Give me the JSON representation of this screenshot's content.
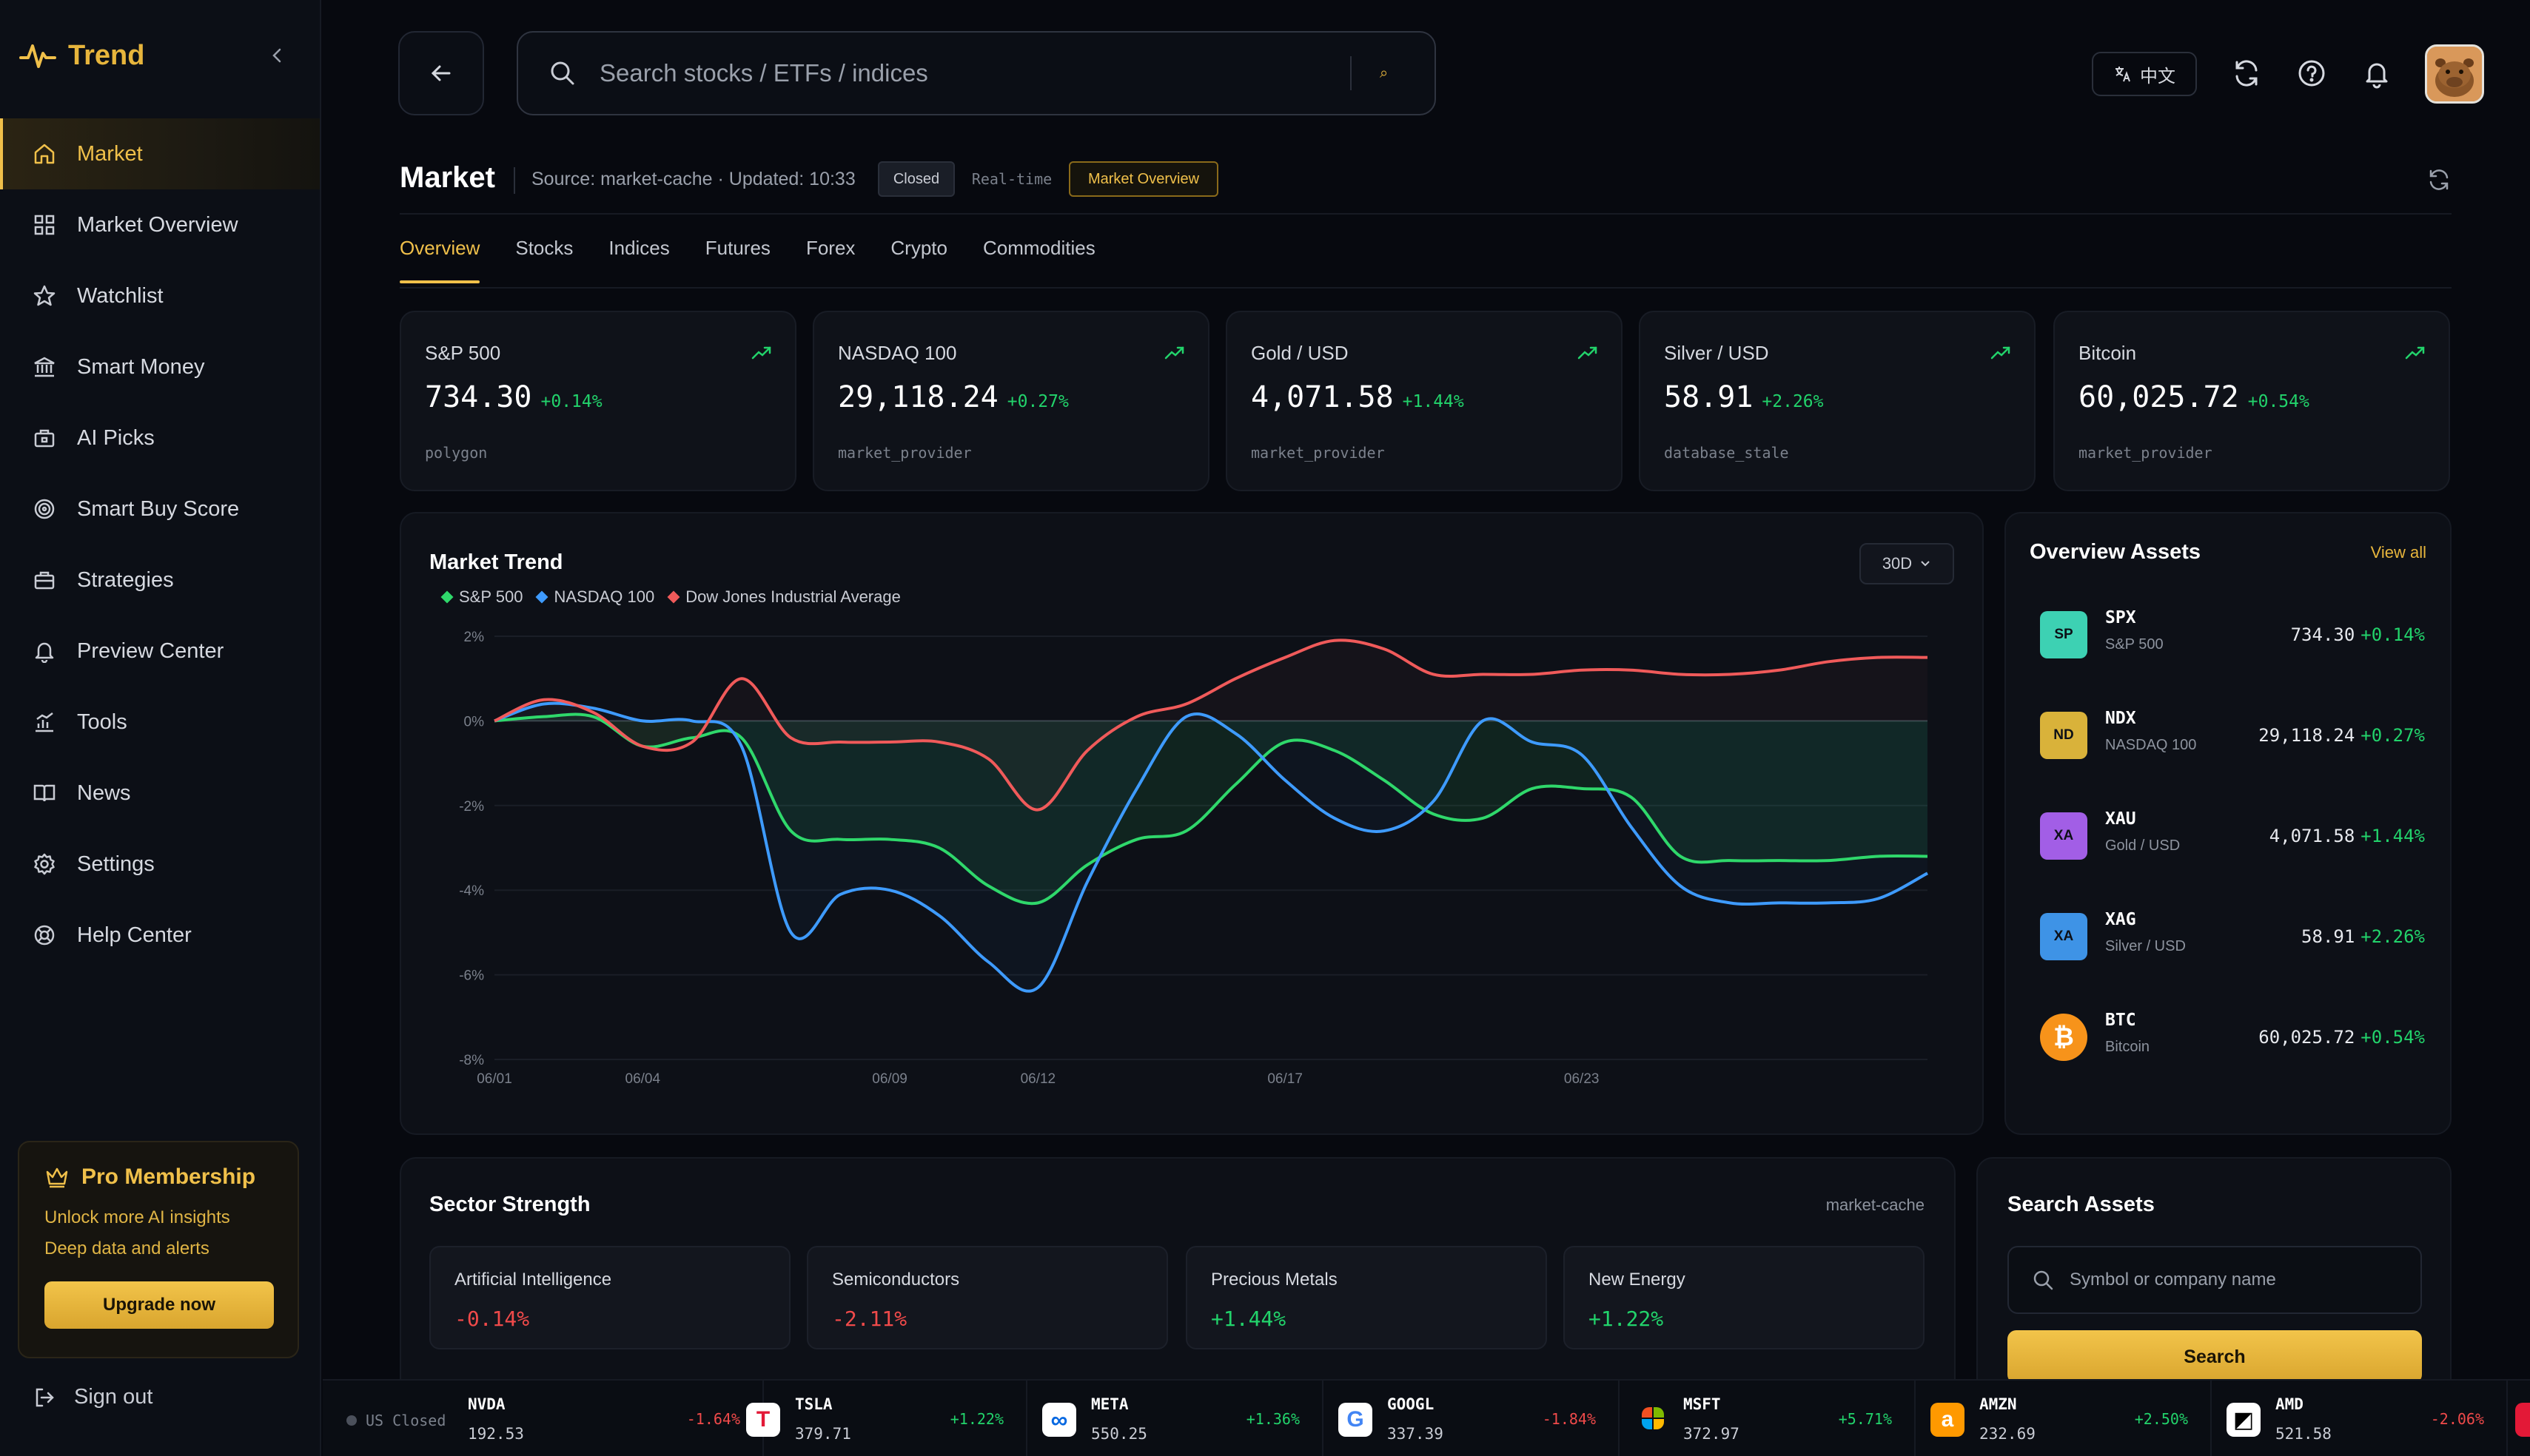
{
  "app": {
    "brand": "Trend"
  },
  "sidebar": {
    "items": [
      {
        "label": "Market",
        "icon": "home-icon",
        "active": true
      },
      {
        "label": "Market Overview",
        "icon": "grid-icon"
      },
      {
        "label": "Watchlist",
        "icon": "star-icon"
      },
      {
        "label": "Smart Money",
        "icon": "bank-icon"
      },
      {
        "label": "AI Picks",
        "icon": "briefcase-lock-icon"
      },
      {
        "label": "Smart Buy Score",
        "icon": "target-icon"
      },
      {
        "label": "Strategies",
        "icon": "briefcase-icon"
      },
      {
        "label": "Preview Center",
        "icon": "bell-icon"
      },
      {
        "label": "Tools",
        "icon": "bar-chart-icon"
      },
      {
        "label": "News",
        "icon": "book-icon"
      },
      {
        "label": "Settings",
        "icon": "gear-icon"
      },
      {
        "label": "Help Center",
        "icon": "lifebuoy-icon"
      }
    ],
    "pro": {
      "title": "Pro Membership",
      "line1": "Unlock more AI insights",
      "line2": "Deep data and alerts",
      "button": "Upgrade now"
    },
    "signout": "Sign out"
  },
  "topbar": {
    "search_placeholder": "Search stocks / ETFs / indices",
    "search_key": "⌕",
    "language": "中文"
  },
  "header": {
    "title": "Market",
    "source": "Source: market-cache · Updated: 10:33",
    "badge_closed": "Closed",
    "badge_realtime": "Real-time",
    "badge_overview": "Market Overview"
  },
  "tabs": [
    "Overview",
    "Stocks",
    "Indices",
    "Futures",
    "Forex",
    "Crypto",
    "Commodities"
  ],
  "cards": [
    {
      "name": "S&P 500",
      "price": "734.30",
      "change": "+0.14%",
      "source": "polygon"
    },
    {
      "name": "NASDAQ 100",
      "price": "29,118.24",
      "change": "+0.27%",
      "source": "market_provider"
    },
    {
      "name": "Gold / USD",
      "price": "4,071.58",
      "change": "+1.44%",
      "source": "market_provider"
    },
    {
      "name": "Silver / USD",
      "price": "58.91",
      "change": "+2.26%",
      "source": "database_stale"
    },
    {
      "name": "Bitcoin",
      "price": "60,025.72",
      "change": "+0.54%",
      "source": "market_provider"
    }
  ],
  "trend": {
    "title": "Market Trend",
    "period": "30D"
  },
  "chart_data": {
    "type": "line",
    "x_tick_labels": [
      "06/01",
      "06/04",
      "06/09",
      "06/12",
      "06/17",
      "06/23"
    ],
    "y_tick_labels": [
      "2%",
      "0%",
      "-2%",
      "-4%",
      "-6%",
      "-8%"
    ],
    "ylim": [
      -8,
      2
    ],
    "grid": true,
    "legend": "top-left",
    "x_days": [
      1,
      2,
      3,
      4,
      5,
      6,
      7,
      8,
      9,
      10,
      11,
      12,
      13,
      14,
      15,
      16,
      17,
      18,
      19,
      20,
      21,
      22,
      23,
      24,
      25,
      26,
      27,
      28,
      29,
      30
    ],
    "series": [
      {
        "name": "S&P 500",
        "color": "#2fd86b",
        "values": [
          0,
          0.1,
          0.1,
          -0.6,
          -0.4,
          -0.4,
          -2.6,
          -2.8,
          -2.8,
          -3.0,
          -3.9,
          -4.3,
          -3.4,
          -2.8,
          -2.6,
          -1.5,
          -0.5,
          -0.7,
          -1.4,
          -2.2,
          -2.3,
          -1.6,
          -1.6,
          -1.8,
          -3.2,
          -3.3,
          -3.3,
          -3.3,
          -3.2,
          -3.2
        ]
      },
      {
        "name": "NASDAQ 100",
        "color": "#3e9bff",
        "values": [
          0,
          0.4,
          0.3,
          0.0,
          0.0,
          -0.6,
          -5.0,
          -4.1,
          -4.0,
          -4.6,
          -5.7,
          -6.3,
          -3.8,
          -1.6,
          0.1,
          -0.3,
          -1.4,
          -2.3,
          -2.6,
          -1.9,
          0.0,
          -0.5,
          -0.8,
          -2.5,
          -3.9,
          -4.3,
          -4.3,
          -4.3,
          -4.2,
          -3.6
        ]
      },
      {
        "name": "Dow Jones Industrial Average",
        "color": "#f05a5a",
        "values": [
          0,
          0.5,
          0.2,
          -0.6,
          -0.5,
          1.0,
          -0.4,
          -0.5,
          -0.5,
          -0.5,
          -0.9,
          -2.1,
          -0.7,
          0.1,
          0.4,
          1.0,
          1.5,
          1.9,
          1.7,
          1.1,
          1.1,
          1.1,
          1.2,
          1.2,
          1.1,
          1.1,
          1.2,
          1.4,
          1.5,
          1.5
        ]
      }
    ]
  },
  "assets": {
    "title": "Overview Assets",
    "view_all": "View all",
    "items": [
      {
        "badge": "SP",
        "symbol": "SPX",
        "name": "S&P 500",
        "price": "734.30",
        "change": "+0.14%",
        "color": "#3dd1b3"
      },
      {
        "badge": "ND",
        "symbol": "NDX",
        "name": "NASDAQ 100",
        "price": "29,118.24",
        "change": "+0.27%",
        "color": "#d9b23a"
      },
      {
        "badge": "XA",
        "symbol": "XAU",
        "name": "Gold / USD",
        "price": "4,071.58",
        "change": "+1.44%",
        "color": "#a25ee6"
      },
      {
        "badge": "XA",
        "symbol": "XAG",
        "name": "Silver / USD",
        "price": "58.91",
        "change": "+2.26%",
        "color": "#3e93e6"
      },
      {
        "badge": "₿",
        "symbol": "BTC",
        "name": "Bitcoin",
        "price": "60,025.72",
        "change": "+0.54%",
        "color": "#f7931a"
      }
    ]
  },
  "sectors": {
    "title": "Sector Strength",
    "source": "market-cache",
    "items": [
      {
        "name": "Artificial Intelligence",
        "value": "-0.14%",
        "dir": "neg"
      },
      {
        "name": "Semiconductors",
        "value": "-2.11%",
        "dir": "neg"
      },
      {
        "name": "Precious Metals",
        "value": "+1.44%",
        "dir": "pos"
      },
      {
        "name": "New Energy",
        "value": "+1.22%",
        "dir": "pos"
      }
    ]
  },
  "search_assets": {
    "title": "Search Assets",
    "placeholder": "Symbol or company name",
    "button": "Search"
  },
  "ticker": {
    "status": "US Closed",
    "items": [
      {
        "symbol": "NVDA",
        "price": "192.53",
        "change": "-1.64%",
        "dir": "neg",
        "logo": ""
      },
      {
        "symbol": "TSLA",
        "price": "379.71",
        "change": "+1.22%",
        "dir": "pos",
        "logo": "T"
      },
      {
        "symbol": "META",
        "price": "550.25",
        "change": "+1.36%",
        "dir": "pos",
        "logo": "∞"
      },
      {
        "symbol": "GOOGL",
        "price": "337.39",
        "change": "-1.84%",
        "dir": "neg",
        "logo": "G"
      },
      {
        "symbol": "MSFT",
        "price": "372.97",
        "change": "+5.71%",
        "dir": "pos",
        "logo": ""
      },
      {
        "symbol": "AMZN",
        "price": "232.69",
        "change": "+2.50%",
        "dir": "pos",
        "logo": "a"
      },
      {
        "symbol": "AMD",
        "price": "521.58",
        "change": "-2.06%",
        "dir": "neg",
        "logo": "◩"
      }
    ]
  }
}
